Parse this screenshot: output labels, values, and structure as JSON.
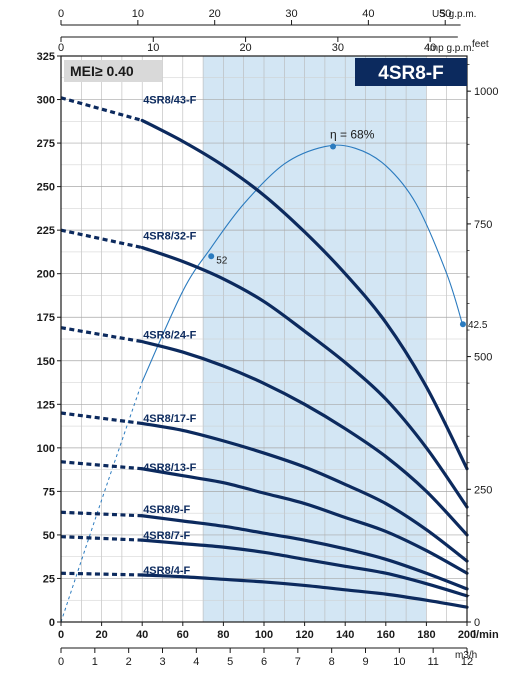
{
  "chart_data": {
    "type": "line",
    "model_title": "4SR8-F",
    "mei_label": "MEI≥ 0.40",
    "colors": {
      "curve": "#0c2a5e",
      "efficiency": "#2b7bbf",
      "band": "#d3e6f4",
      "model_box": "#0c2a5e",
      "mei_box": "#d9d9d9"
    },
    "x_axis": {
      "unit": "l/min",
      "range": [
        0,
        200
      ],
      "ticks": [
        0,
        20,
        40,
        60,
        80,
        100,
        120,
        140,
        160,
        180,
        200
      ]
    },
    "x_axis_m3h": {
      "unit": "m3/h",
      "ticks": [
        0,
        1,
        2,
        3,
        4,
        5,
        6,
        7,
        8,
        9,
        10,
        11,
        12
      ]
    },
    "x_axis_usgpm": {
      "unit": "US g.p.m.",
      "ticks": [
        0,
        10,
        20,
        30,
        40,
        50
      ]
    },
    "x_axis_impgpm": {
      "unit": "Imp g.p.m.",
      "ticks": [
        0,
        10,
        20,
        30,
        40
      ]
    },
    "y_axis": {
      "unit": "",
      "range": [
        0,
        325
      ],
      "ticks": [
        0,
        25,
        50,
        75,
        100,
        125,
        150,
        175,
        200,
        225,
        250,
        275,
        300,
        325
      ]
    },
    "y_axis_feet": {
      "unit": "feet",
      "ticks": [
        0,
        250,
        500,
        750,
        1000
      ]
    },
    "recommended_range": [
      70,
      180
    ],
    "series": [
      {
        "name": "4SR8/43-F",
        "x": [
          0,
          40,
          60,
          80,
          100,
          120,
          140,
          160,
          180,
          200
        ],
        "y": [
          301,
          288,
          276,
          262,
          245,
          224,
          200,
          172,
          135,
          88
        ],
        "dashed_until": 40,
        "label_pos": [
          40,
          300
        ]
      },
      {
        "name": "4SR8/32-F",
        "x": [
          0,
          40,
          60,
          80,
          100,
          120,
          140,
          160,
          180,
          200
        ],
        "y": [
          225,
          215,
          207,
          197,
          184,
          167,
          149,
          128,
          100,
          66
        ],
        "dashed_until": 40,
        "label_pos": [
          40,
          222
        ]
      },
      {
        "name": "4SR8/24-F",
        "x": [
          0,
          40,
          60,
          80,
          100,
          120,
          140,
          160,
          180,
          200
        ],
        "y": [
          169,
          161,
          155,
          147,
          137,
          125,
          111,
          95,
          75,
          50
        ],
        "dashed_until": 40,
        "label_pos": [
          40,
          165
        ]
      },
      {
        "name": "4SR8/17-F",
        "x": [
          0,
          40,
          60,
          80,
          100,
          120,
          140,
          160,
          180,
          200
        ],
        "y": [
          120,
          114,
          110,
          104,
          97,
          89,
          79,
          68,
          53,
          35
        ],
        "dashed_until": 40,
        "label_pos": [
          40,
          117
        ]
      },
      {
        "name": "4SR8/13-F",
        "x": [
          0,
          40,
          60,
          80,
          100,
          120,
          140,
          160,
          180,
          200
        ],
        "y": [
          92,
          88,
          84,
          80,
          74,
          68,
          60,
          52,
          41,
          28
        ],
        "dashed_until": 40,
        "label_pos": [
          40,
          89
        ]
      },
      {
        "name": "4SR8/9-F",
        "x": [
          0,
          40,
          60,
          80,
          100,
          120,
          140,
          160,
          180,
          200
        ],
        "y": [
          63,
          61,
          58,
          55,
          51,
          47,
          42,
          36,
          28,
          19
        ],
        "dashed_until": 40,
        "label_pos": [
          40,
          65
        ]
      },
      {
        "name": "4SR8/7-F",
        "x": [
          0,
          40,
          60,
          80,
          100,
          120,
          140,
          160,
          180,
          200
        ],
        "y": [
          49,
          47,
          45,
          43,
          40,
          36,
          32,
          28,
          22,
          15
        ],
        "dashed_until": 40,
        "label_pos": [
          40,
          50
        ]
      },
      {
        "name": "4SR8/4-F",
        "x": [
          0,
          40,
          60,
          80,
          100,
          120,
          140,
          160,
          180,
          200
        ],
        "y": [
          28,
          27,
          26,
          24.5,
          23,
          21,
          18.5,
          16,
          12.5,
          8.5
        ],
        "dashed_until": 40,
        "label_pos": [
          40,
          30
        ]
      }
    ],
    "efficiency_curve": {
      "x": [
        0,
        20,
        40,
        60,
        74,
        90,
        110,
        130,
        145,
        160,
        175,
        190,
        198
      ],
      "y": [
        0,
        70,
        138,
        190,
        215,
        240,
        263,
        273,
        272,
        262,
        240,
        200,
        170
      ],
      "dashed_until": 40,
      "points": [
        {
          "x": 74,
          "y": 210,
          "label": "52"
        },
        {
          "x": 134,
          "y": 273,
          "label": "η = 68%"
        },
        {
          "x": 198,
          "y": 171,
          "label": "42.5"
        }
      ]
    }
  }
}
